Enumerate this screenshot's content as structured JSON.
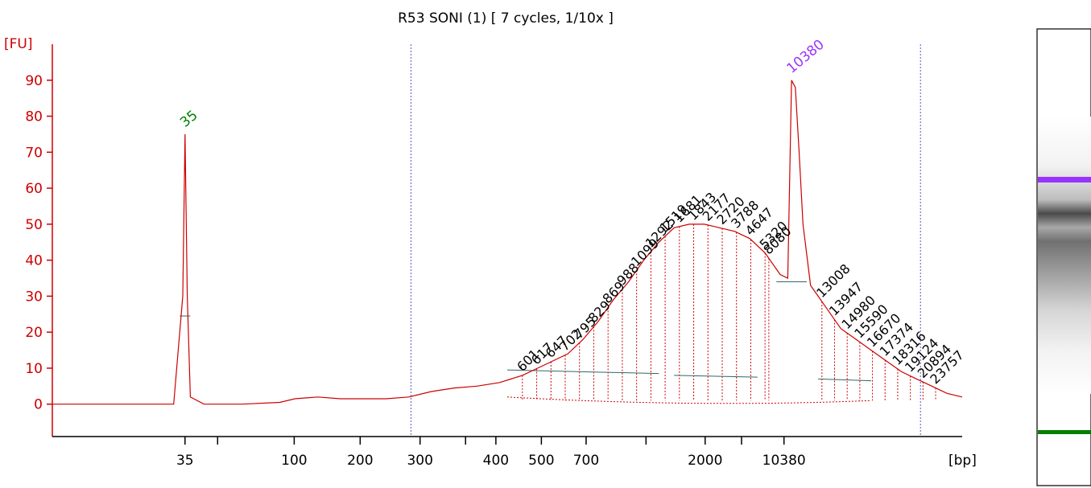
{
  "chart_data": {
    "type": "line",
    "title": "R53 SONI (1)  [  7 cycles, 1/10x ]",
    "ylabel": "[FU]",
    "xlabel": "[bp]",
    "ylim": [
      -9,
      100
    ],
    "yticks": [
      0,
      10,
      20,
      30,
      40,
      50,
      60,
      70,
      80,
      90
    ],
    "xtick_labels": [
      "35",
      "100",
      "200",
      "300",
      "400",
      "500",
      "700",
      "2000",
      "10380"
    ],
    "xlim_time": [
      0,
      100
    ],
    "xtick_times": [
      17.5,
      21.8,
      31.9,
      40.6,
      48.5,
      54.5,
      58.5,
      64.5,
      70.4,
      78.3,
      86.1,
      90.9,
      96.5
    ],
    "xtick_label_times": [
      17.5,
      31.9,
      40.6,
      48.5,
      58.5,
      64.5,
      70.4,
      86.1,
      96.5
    ],
    "marker_lines_time": [
      47.3,
      114.5
    ],
    "trace": {
      "color": "#cc0000",
      "x": [
        0,
        4,
        8,
        12,
        16,
        17.2,
        17.5,
        17.8,
        18.2,
        20,
        25,
        30,
        32,
        35,
        38,
        41,
        44,
        47,
        50,
        53,
        56,
        59,
        62,
        65,
        68,
        70,
        72,
        74,
        76,
        78,
        80,
        82,
        84,
        86,
        88,
        90,
        92,
        94,
        96,
        97,
        97.5,
        98,
        98.5,
        99,
        100,
        101,
        102,
        103,
        104,
        106,
        108,
        110,
        112,
        114,
        116,
        118,
        120
      ],
      "y": [
        0,
        0,
        0,
        0,
        0,
        30,
        75,
        30,
        2,
        0,
        0,
        0.5,
        1.5,
        2,
        1.5,
        1.5,
        1.5,
        2,
        3.5,
        4.5,
        5,
        6,
        8,
        11,
        14,
        18,
        23,
        29,
        34,
        40,
        45,
        49,
        50,
        50,
        49,
        48,
        46,
        42,
        36,
        35,
        90,
        88,
        70,
        50,
        33,
        30,
        27,
        24,
        21,
        18,
        15,
        12,
        9,
        7,
        5,
        3,
        2
      ]
    },
    "peaks": [
      {
        "label": "35",
        "x": 17.5,
        "y": 75,
        "color": "#008000"
      },
      {
        "label": "10380",
        "x": 97.5,
        "y": 90,
        "color": "#9933ff"
      }
    ],
    "fragment_labels": [
      "601",
      "617",
      "647",
      "702",
      "795",
      "829",
      "869",
      "988",
      "1099",
      "1292",
      "1519",
      "1681",
      "1843",
      "2177",
      "2720",
      "3788",
      "4647",
      "5320",
      "8080",
      "13008",
      "13947",
      "14980",
      "15590",
      "16670",
      "17374",
      "18316",
      "19124",
      "20894",
      "23757"
    ],
    "gel": {
      "marker_top_color": "#9933ff",
      "marker_bottom_color": "#008000"
    }
  }
}
